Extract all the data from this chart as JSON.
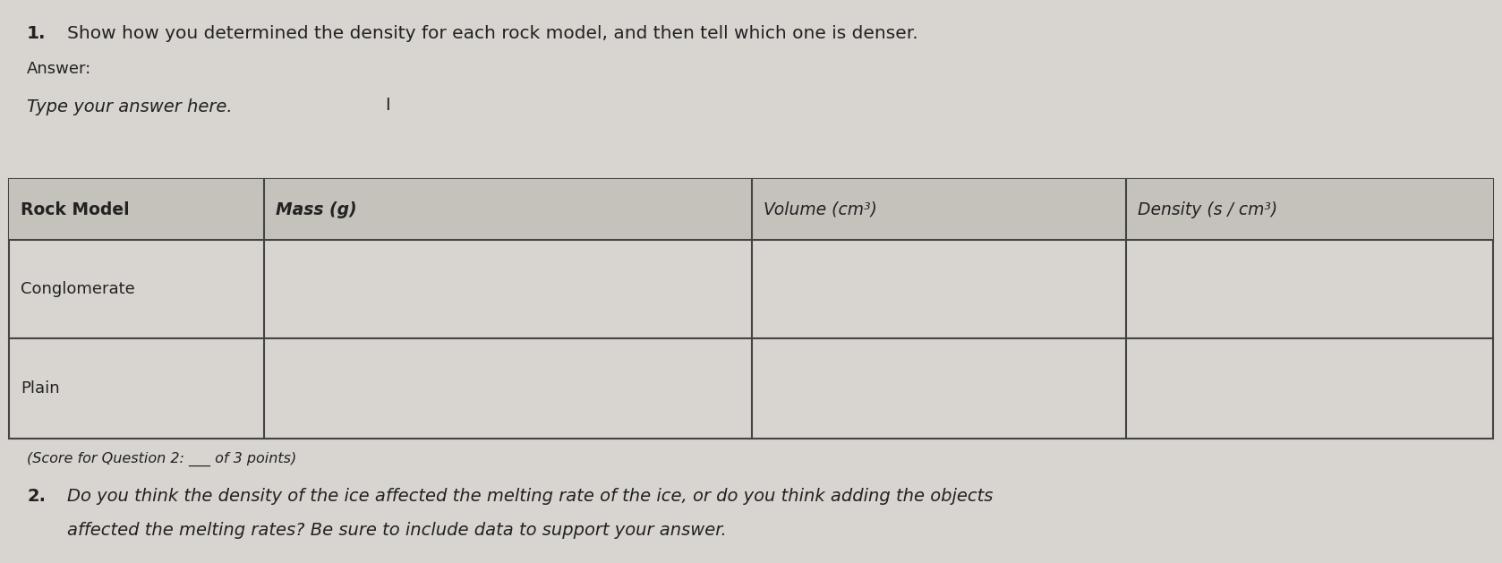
{
  "bg_color": "#d8d5d0",
  "white_area_color": "#e8e5e0",
  "question1_number": "1.",
  "question1_text": "Show how you determined the density for each rock model, and then tell which one is denser.",
  "answer_label": "Answer:",
  "type_answer_text": "Type your answer here.",
  "cursor_char": "I",
  "table_headers": [
    "Rock Model",
    "Mass (g)",
    "Volume (cm³)",
    "Density (s / cm³)"
  ],
  "table_rows": [
    "Conglomerate",
    "Plain"
  ],
  "score_text": "(Score for Question 2: ___ of 3 points)",
  "question2_number": "2.",
  "question2_line1": "Do you think the density of the ice affected the melting rate of the ice, or do you think adding the objects",
  "question2_line2": "affected the melting rates? Be sure to include data to support your answer.",
  "text_color": "#222222",
  "table_border_color": "#444444",
  "header_row_color": "#c5c2bc",
  "font_size_q1": 14.5,
  "font_size_answer": 13,
  "font_size_type": 14,
  "font_size_table_header": 13.5,
  "font_size_table_row": 13,
  "font_size_score": 11.5,
  "font_size_q2": 14
}
